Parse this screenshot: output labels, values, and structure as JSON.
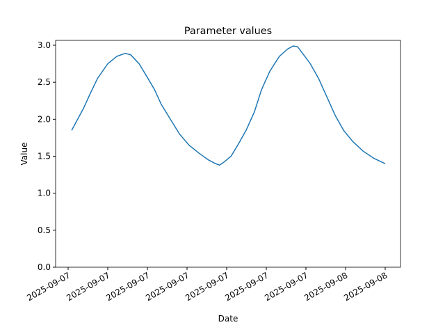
{
  "chart_data": {
    "type": "line",
    "title": "Parameter values",
    "x_label": "Date",
    "y_label": "Value",
    "x": [
      0.09,
      0.39,
      0.56,
      0.74,
      1.0,
      1.23,
      1.44,
      1.58,
      1.79,
      1.96,
      2.18,
      2.35,
      2.58,
      2.81,
      3.05,
      3.28,
      3.54,
      3.72,
      3.82,
      3.93,
      4.11,
      4.28,
      4.49,
      4.7,
      4.88,
      5.09,
      5.33,
      5.54,
      5.68,
      5.79,
      5.93,
      6.11,
      6.32,
      6.53,
      6.74,
      6.95,
      7.18,
      7.44,
      7.72,
      8.0
    ],
    "series": [
      {
        "name": "Value",
        "color": "#1f77b4",
        "values": [
          1.85,
          2.15,
          2.35,
          2.55,
          2.75,
          2.85,
          2.89,
          2.87,
          2.75,
          2.6,
          2.4,
          2.2,
          2.0,
          1.8,
          1.65,
          1.55,
          1.45,
          1.4,
          1.38,
          1.42,
          1.5,
          1.65,
          1.85,
          2.1,
          2.4,
          2.65,
          2.85,
          2.95,
          2.99,
          2.98,
          2.88,
          2.75,
          2.55,
          2.3,
          2.05,
          1.85,
          1.7,
          1.57,
          1.47,
          1.4
        ]
      }
    ],
    "xlim": [
      -0.316,
      8.386
    ],
    "xticks": [
      {
        "value": 0,
        "label": "2025-09-07"
      },
      {
        "value": 1,
        "label": "2025-09-07"
      },
      {
        "value": 2,
        "label": "2025-09-07"
      },
      {
        "value": 3,
        "label": "2025-09-07"
      },
      {
        "value": 4,
        "label": "2025-09-07"
      },
      {
        "value": 5,
        "label": "2025-09-07"
      },
      {
        "value": 6,
        "label": "2025-09-07"
      },
      {
        "value": 7,
        "label": "2025-09-08"
      },
      {
        "value": 8,
        "label": "2025-09-08"
      }
    ],
    "ylim": [
      0,
      3.066
    ],
    "yticks": [
      {
        "value": 0,
        "label": "0.0"
      },
      0.5,
      {
        "value": 1,
        "label": "1.0"
      },
      1.5,
      {
        "value": 2,
        "label": "2.0"
      },
      2.5,
      {
        "value": 3,
        "label": "3.0"
      }
    ]
  }
}
